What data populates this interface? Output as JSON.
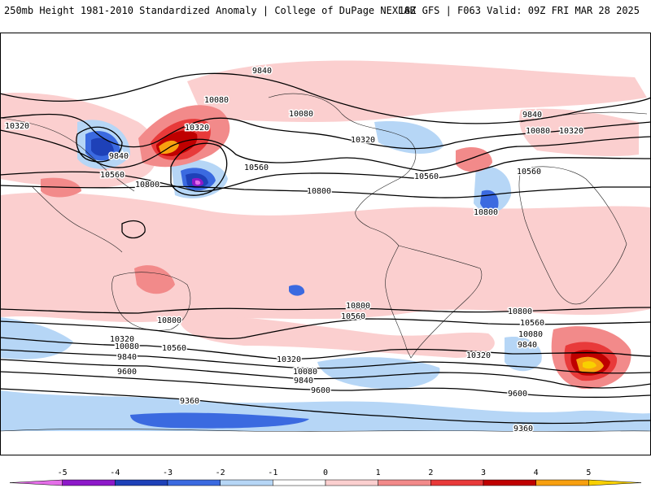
{
  "header": {
    "title": "250mb Height 1981-2010 Standardized Anomaly | College of DuPage NEXLAB",
    "run_info": "18Z GFS | F063 Valid: 09Z FRI MAR 28 2025"
  },
  "contour_labels": [
    "9840",
    "10080",
    "10320",
    "10320",
    "9840",
    "10560",
    "10800",
    "10080",
    "10560",
    "10800",
    "10320",
    "10560",
    "10800",
    "9840",
    "10080",
    "10320",
    "10560",
    "10800",
    "10800",
    "10560",
    "10800",
    "10560",
    "10320",
    "10080",
    "9840",
    "9600",
    "10320",
    "10560",
    "10080",
    "9840",
    "10320",
    "10800",
    "10560",
    "10080",
    "9840",
    "9600",
    "9600",
    "9360",
    "9360"
  ],
  "colorbar": {
    "ticks": [
      "-5",
      "-4",
      "-3",
      "-2",
      "-1",
      "0",
      "1",
      "2",
      "3",
      "4",
      "5"
    ],
    "colors": [
      "#e46ee8",
      "#8d19c9",
      "#1e41b8",
      "#3b6ae0",
      "#b6d6f6",
      "#ffffff",
      "#fbcfcf",
      "#f28a8a",
      "#e83a3a",
      "#bf0000",
      "#f8a010",
      "#f8d000"
    ]
  }
}
